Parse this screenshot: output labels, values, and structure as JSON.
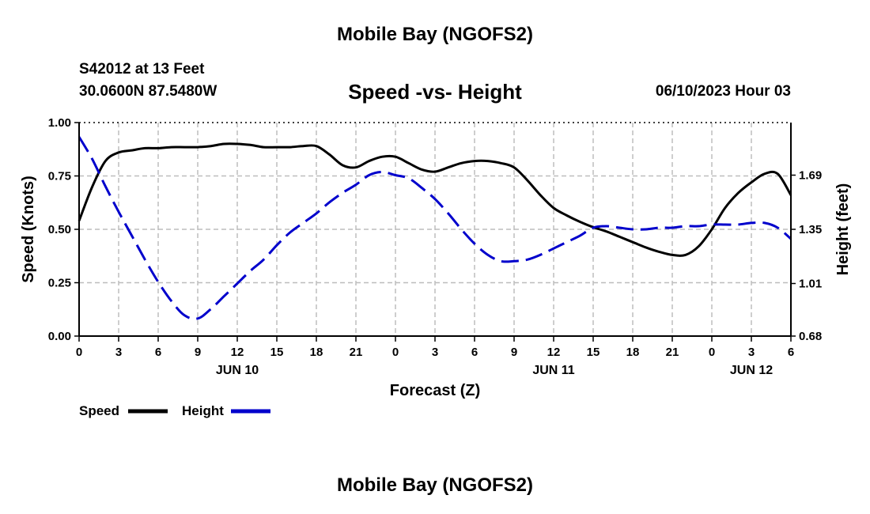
{
  "header": {
    "title": "Mobile Bay (NGOFS2)",
    "station": "S42012 at 13 Feet",
    "coords": "30.0600N  87.5480W",
    "subtitle": "Speed -vs- Height",
    "datestamp": "06/10/2023 Hour 03",
    "footer_title": "Mobile Bay (NGOFS2)"
  },
  "chart_data": {
    "type": "line",
    "xlabel": "Forecast (Z)",
    "ylabel_left": "Speed (Knots)",
    "ylabel_right": "Height (feet)",
    "xlim": [
      0,
      54
    ],
    "ylim_left": [
      0,
      1
    ],
    "ylim_right": [
      0.68,
      2.02
    ],
    "grid": true,
    "legend_placement": "bottom-left",
    "x_ticks": [
      {
        "x": 0,
        "label": "0"
      },
      {
        "x": 3,
        "label": "3"
      },
      {
        "x": 6,
        "label": "6"
      },
      {
        "x": 9,
        "label": "9"
      },
      {
        "x": 12,
        "label": "12"
      },
      {
        "x": 15,
        "label": "15"
      },
      {
        "x": 18,
        "label": "18"
      },
      {
        "x": 21,
        "label": "21"
      },
      {
        "x": 24,
        "label": "0"
      },
      {
        "x": 27,
        "label": "3"
      },
      {
        "x": 30,
        "label": "6"
      },
      {
        "x": 33,
        "label": "9"
      },
      {
        "x": 36,
        "label": "12"
      },
      {
        "x": 39,
        "label": "15"
      },
      {
        "x": 42,
        "label": "18"
      },
      {
        "x": 45,
        "label": "21"
      },
      {
        "x": 48,
        "label": "0"
      },
      {
        "x": 51,
        "label": "3"
      },
      {
        "x": 54,
        "label": "6"
      }
    ],
    "day_labels": [
      {
        "x": 12,
        "label": "JUN 10"
      },
      {
        "x": 36,
        "label": "JUN 11"
      },
      {
        "x": 51,
        "label": "JUN 12"
      }
    ],
    "y_ticks_left": [
      {
        "y": 0,
        "label": "0.00"
      },
      {
        "y": 0.25,
        "label": "0.25"
      },
      {
        "y": 0.5,
        "label": "0.50"
      },
      {
        "y": 0.75,
        "label": "0.75"
      },
      {
        "y": 1,
        "label": "1.00"
      }
    ],
    "y_ticks_right": [
      {
        "y": 0.68,
        "label": "0.68"
      },
      {
        "y": 1.01,
        "label": "1.01"
      },
      {
        "y": 1.35,
        "label": "1.35"
      },
      {
        "y": 1.69,
        "label": "1.69"
      }
    ],
    "series": [
      {
        "name": "Speed",
        "color": "#000000",
        "axis": "left",
        "dash": false,
        "x": [
          0,
          1,
          2,
          3,
          4,
          5,
          6,
          7,
          8,
          9,
          10,
          11,
          12,
          13,
          14,
          15,
          16,
          17,
          18,
          19,
          20,
          21,
          22,
          23,
          24,
          25,
          26,
          27,
          28,
          29,
          30,
          31,
          32,
          33,
          34,
          35,
          36,
          37,
          38,
          39,
          40,
          41,
          42,
          43,
          44,
          45,
          46,
          47,
          48,
          49,
          50,
          51,
          52,
          53,
          54
        ],
        "values": [
          0.54,
          0.7,
          0.82,
          0.86,
          0.87,
          0.88,
          0.88,
          0.885,
          0.885,
          0.885,
          0.89,
          0.9,
          0.9,
          0.895,
          0.885,
          0.885,
          0.885,
          0.89,
          0.89,
          0.85,
          0.8,
          0.79,
          0.82,
          0.84,
          0.84,
          0.81,
          0.78,
          0.77,
          0.79,
          0.81,
          0.82,
          0.82,
          0.81,
          0.79,
          0.73,
          0.66,
          0.6,
          0.565,
          0.535,
          0.51,
          0.49,
          0.465,
          0.44,
          0.415,
          0.395,
          0.38,
          0.38,
          0.42,
          0.5,
          0.6,
          0.67,
          0.72,
          0.76,
          0.76,
          0.66
        ]
      },
      {
        "name": "Height",
        "color": "#0000cc",
        "axis": "right",
        "dash": true,
        "x": [
          0,
          1,
          2,
          3,
          4,
          5,
          6,
          7,
          8,
          9,
          10,
          11,
          12,
          13,
          14,
          15,
          16,
          17,
          18,
          19,
          20,
          21,
          22,
          23,
          24,
          25,
          26,
          27,
          28,
          29,
          30,
          31,
          32,
          33,
          34,
          35,
          36,
          37,
          38,
          39,
          40,
          41,
          42,
          43,
          44,
          45,
          46,
          47,
          48,
          49,
          50,
          51,
          52,
          53,
          54
        ],
        "values": [
          1.93,
          1.79,
          1.62,
          1.46,
          1.31,
          1.16,
          1.02,
          0.9,
          0.81,
          0.79,
          0.85,
          0.93,
          1.01,
          1.09,
          1.16,
          1.25,
          1.33,
          1.39,
          1.45,
          1.52,
          1.58,
          1.63,
          1.69,
          1.71,
          1.69,
          1.67,
          1.61,
          1.54,
          1.45,
          1.35,
          1.26,
          1.19,
          1.15,
          1.15,
          1.16,
          1.19,
          1.23,
          1.27,
          1.31,
          1.36,
          1.37,
          1.36,
          1.35,
          1.35,
          1.36,
          1.36,
          1.37,
          1.37,
          1.38,
          1.38,
          1.38,
          1.39,
          1.39,
          1.36,
          1.29
        ]
      }
    ]
  }
}
